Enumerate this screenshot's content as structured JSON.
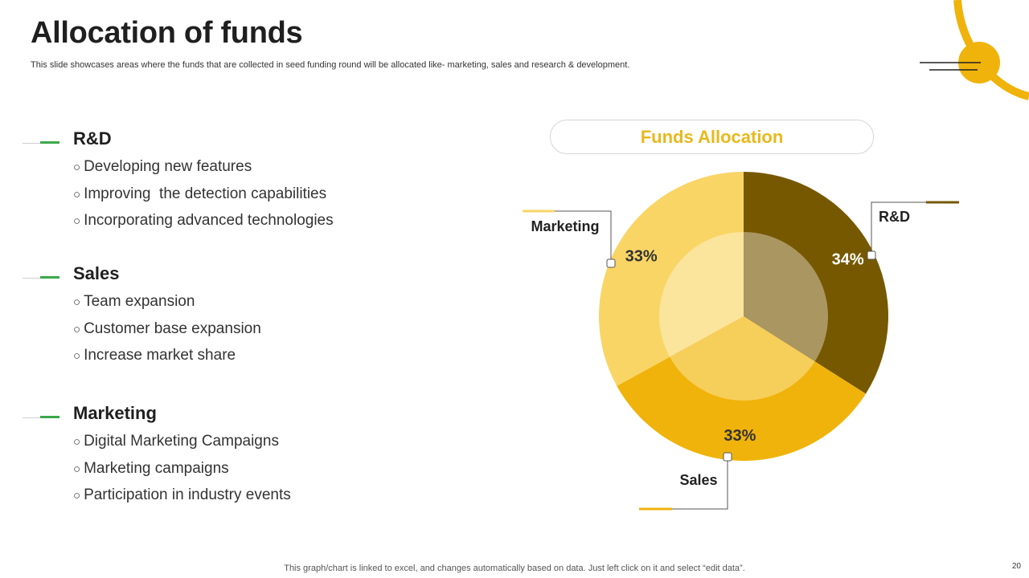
{
  "title": "Allocation of funds",
  "subtitle": "This slide showcases areas where the funds that are collected in seed funding round will be allocated like- marketing, sales and research & development.",
  "sections": [
    {
      "heading": "R&D",
      "items": [
        "Developing new features",
        "Improving  the detection capabilities",
        "Incorporating advanced technologies"
      ]
    },
    {
      "heading": "Sales",
      "items": [
        "Team expansion",
        "Customer base expansion",
        "Increase market share"
      ]
    },
    {
      "heading": "Marketing",
      "items": [
        "Digital Marketing Campaigns",
        "Marketing campaigns",
        "Participation in industry events"
      ]
    }
  ],
  "bullet_char": "○",
  "chart_data": {
    "type": "pie",
    "title": "Funds Allocation",
    "categories": [
      "R&D",
      "Sales",
      "Marketing"
    ],
    "values": [
      34,
      33,
      33
    ],
    "labels": [
      "34%",
      "33%",
      "33%"
    ],
    "colors": [
      "#765800",
      "#f0b30b",
      "#f9d566"
    ],
    "inner_colors": [
      "#aa9660",
      "#f6ce5a",
      "#fbe49b"
    ]
  },
  "footer": "This graph/chart is linked to excel,  and changes automatically based on data. Just left click on it and select “edit data”.",
  "page_number": "20"
}
